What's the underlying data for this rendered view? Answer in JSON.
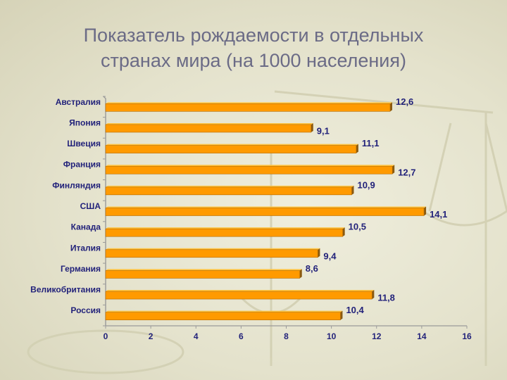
{
  "slide": {
    "title_line1": "Показатель рождаемости в отдельных",
    "title_line2": "странах мира (на 1000 населения)"
  },
  "colors": {
    "bar_fill": "#ff9a00",
    "bar_top": "#ffc340",
    "bar_shadow": "#8a5a10",
    "label_text": "#22227a",
    "title_text": "#6b6b86",
    "axis": "#9a9a9a"
  },
  "chart_data": {
    "type": "bar",
    "orientation": "horizontal",
    "title": "Показатель рождаемости в отдельных странах мира (на 1000 населения)",
    "categories": [
      "Австралия",
      "Япония",
      "Швеция",
      "Франция",
      "Финляндия",
      "США",
      "Канада",
      "Италия",
      "Германия",
      "Великобритания",
      "Россия"
    ],
    "values": [
      12.6,
      9.1,
      11.1,
      12.7,
      10.9,
      14.1,
      10.5,
      9.4,
      8.6,
      11.8,
      10.4
    ],
    "value_labels": [
      "12,6",
      "9,1",
      "11,1",
      "12,7",
      "10,9",
      "14,1",
      "10,5",
      "9,4",
      "8,6",
      "11,8",
      "10,4"
    ],
    "xlim": [
      0,
      16
    ],
    "xticks": [
      "0",
      "2",
      "4",
      "6",
      "8",
      "10",
      "12",
      "14",
      "16"
    ],
    "grid": false,
    "legend": "none"
  }
}
